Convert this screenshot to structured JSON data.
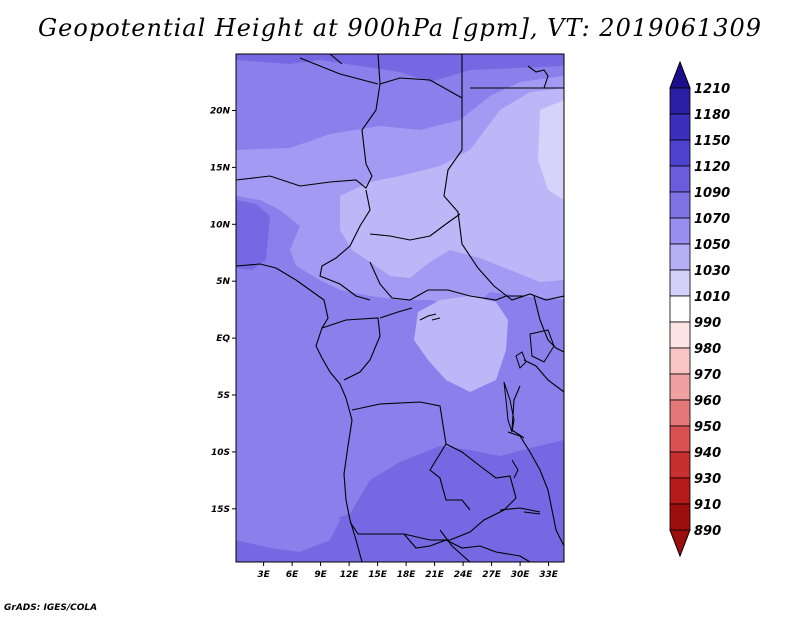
{
  "title": "Geopotential Height at 900hPa [gpm], VT: 2019061309",
  "credit": "GrADS: IGES/COLA",
  "map": {
    "lon_labels": [
      "3E",
      "6E",
      "9E",
      "12E",
      "15E",
      "18E",
      "21E",
      "24E",
      "27E",
      "30E",
      "33E"
    ],
    "lat_labels": [
      "20N",
      "15N",
      "10N",
      "5N",
      "EQ",
      "5S",
      "10S",
      "15S"
    ]
  },
  "colorbar": {
    "levels": [
      "1210",
      "1180",
      "1150",
      "1120",
      "1090",
      "1070",
      "1050",
      "1030",
      "1010",
      "990",
      "980",
      "970",
      "960",
      "950",
      "940",
      "930",
      "910",
      "890"
    ],
    "colors": [
      "#1a0e8c",
      "#2b1fa6",
      "#3b2fbe",
      "#4d41cf",
      "#6a5ddb",
      "#7f74e6",
      "#978ef0",
      "#b5aff6",
      "#d3d0fa",
      "#ffffff",
      "#fce4e4",
      "#f8c4c4",
      "#f0a0a0",
      "#e47878",
      "#d85050",
      "#c83030",
      "#b41a1a",
      "#9c0e0e"
    ],
    "top_color": "#1a0e8c",
    "bottom_color": "#9c0e0e"
  },
  "field_colors": {
    "c1090": "#7469e2",
    "c1070": "#8a80ec",
    "c1050": "#a39bf3",
    "c1030": "#bdb7f7",
    "c1010": "#d6d3fa"
  }
}
